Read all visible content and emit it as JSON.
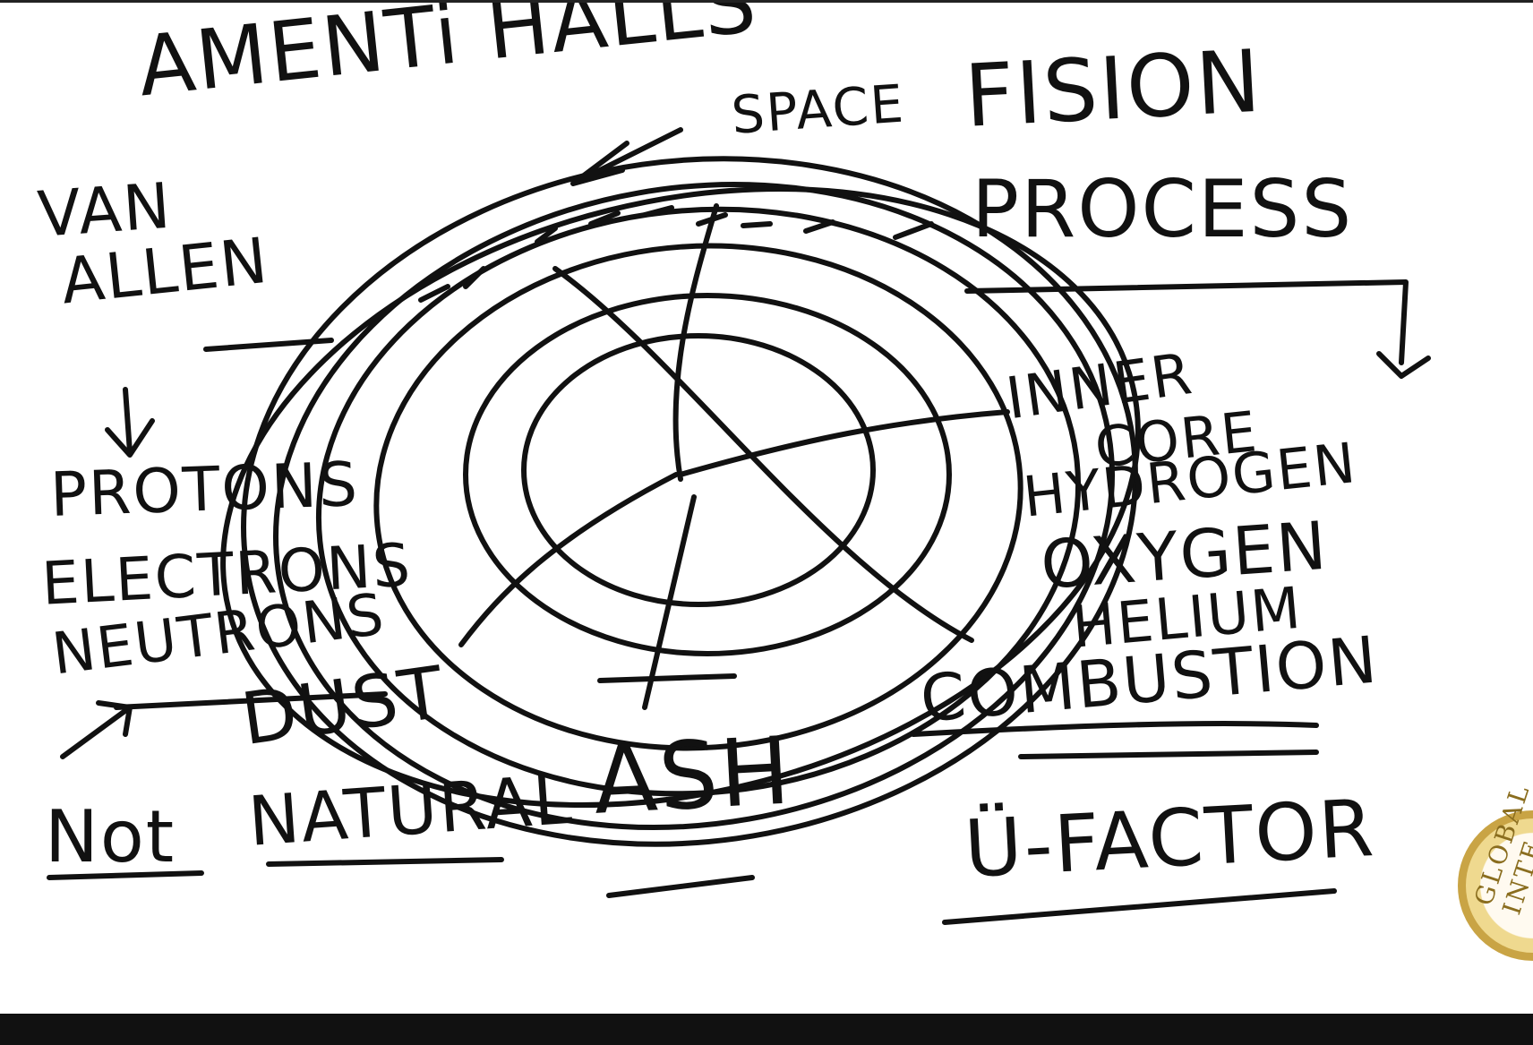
{
  "labels": {
    "amenti_halls": "AMENTi HALLS",
    "space": "SPACE",
    "fision": "FISION",
    "process": "PROCESS",
    "van": "VAN",
    "allen": "ALLEN",
    "protons": "PROTONS",
    "electrons": "ELECTRONS",
    "neutrons": "NEUTRONS",
    "dust": "DUST",
    "not": "Not",
    "natural": "NATURAL",
    "ash": "ASH",
    "inner": "INNER",
    "core": "CORE",
    "hydrogen": "HYDROGEN",
    "oxygen": "OXYGEN",
    "helium": "HELIUM",
    "combustion": "COMBUSTION",
    "u_factor": "Ü-FACTOR"
  },
  "seal": {
    "text": "GLOBAL INTE"
  },
  "colors": {
    "ink": "#111111",
    "board": "#ffffff",
    "seal_gold": "#c9a445"
  }
}
